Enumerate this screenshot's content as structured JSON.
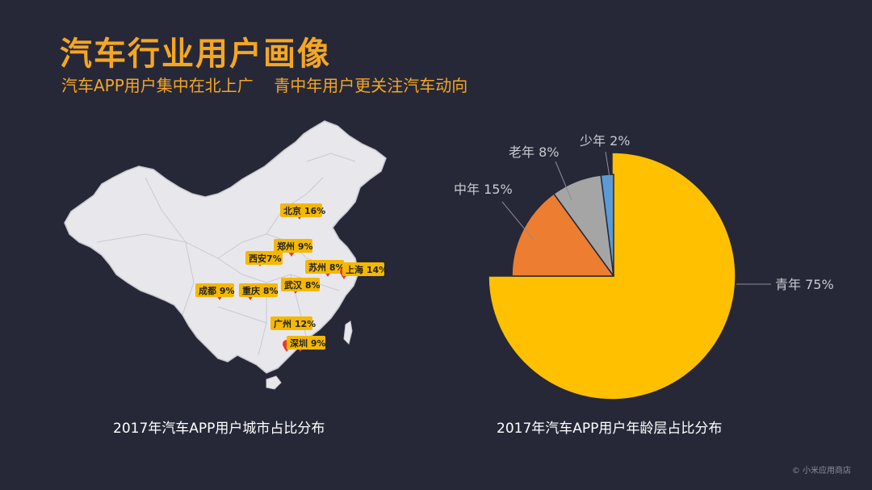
{
  "header": {
    "title": "汽车行业用户画像",
    "subtitle": "汽车APP用户集中在北上广    青中年用户更关注汽车动向"
  },
  "captions": {
    "map": "2017年汽车APP用户城市占比分布",
    "pie": "2017年汽车APP用户年龄层占比分布"
  },
  "watermark": "© 小米应用商店",
  "colors": {
    "map_fill": "#e8e8ec",
    "tag_bg": "#f5b800",
    "pin": "#e53935",
    "youth": "#ffc000",
    "middle": "#ed7d31",
    "old": "#a5a5a5",
    "young": "#5b9bd5"
  },
  "chart_data": [
    {
      "type": "map",
      "title": "2017年汽车APP用户城市占比分布",
      "cities": [
        {
          "name": "北京",
          "label": "北京 16%",
          "value": 16
        },
        {
          "name": "郑州",
          "label": "郑州 9%",
          "value": 9
        },
        {
          "name": "西安",
          "label": "西安7%",
          "value": 7
        },
        {
          "name": "苏州",
          "label": "苏州 8%",
          "value": 8
        },
        {
          "name": "上海",
          "label": "上海 14%",
          "value": 14
        },
        {
          "name": "成都",
          "label": "成都 9%",
          "value": 9
        },
        {
          "name": "重庆",
          "label": "重庆 8%",
          "value": 8
        },
        {
          "name": "武汉",
          "label": "武汉 8%",
          "value": 8
        },
        {
          "name": "广州",
          "label": "广州 12%",
          "value": 12
        },
        {
          "name": "深圳",
          "label": "深圳 9%",
          "value": 9
        }
      ]
    },
    {
      "type": "pie",
      "title": "2017年汽车APP用户年龄层占比分布",
      "slices": [
        {
          "name": "青年",
          "label": "青年 75%",
          "value": 75,
          "color": "#ffc000"
        },
        {
          "name": "中年",
          "label": "中年 15%",
          "value": 15,
          "color": "#ed7d31"
        },
        {
          "name": "老年",
          "label": "老年 8%",
          "value": 8,
          "color": "#a5a5a5"
        },
        {
          "name": "少年",
          "label": "少年 2%",
          "value": 2,
          "color": "#5b9bd5"
        }
      ]
    }
  ]
}
